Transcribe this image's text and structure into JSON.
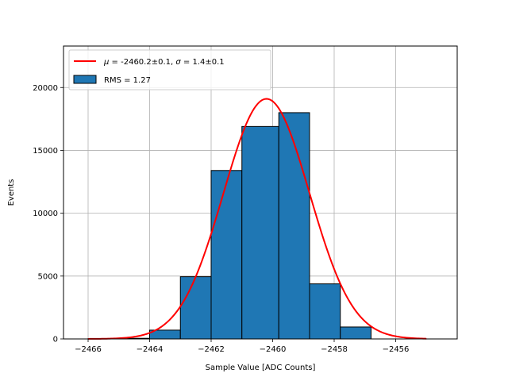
{
  "chart_data": {
    "type": "bar",
    "title": "",
    "xlabel": "Sample Value [ADC Counts]",
    "ylabel": "Events",
    "xlim": [
      -2466.8,
      -2454.0
    ],
    "ylim": [
      0,
      23300
    ],
    "grid": true,
    "legend_position": "top-left",
    "x_ticks": [
      -2466,
      -2464,
      -2462,
      -2460,
      -2458,
      -2456
    ],
    "x_tick_labels": [
      "−2466",
      "−2464",
      "−2462",
      "−2460",
      "−2458",
      "−2456"
    ],
    "y_ticks": [
      0,
      5000,
      10000,
      15000,
      20000
    ],
    "y_tick_labels": [
      "0",
      "5000",
      "10000",
      "15000",
      "20000"
    ],
    "bins": [
      {
        "x0": -2466.0,
        "x1": -2465.0,
        "value": 20
      },
      {
        "x0": -2465.0,
        "x1": -2464.0,
        "value": 50
      },
      {
        "x0": -2464.0,
        "x1": -2463.0,
        "value": 700
      },
      {
        "x0": -2463.0,
        "x1": -2462.0,
        "value": 4950
      },
      {
        "x0": -2462.0,
        "x1": -2461.0,
        "value": 13400
      },
      {
        "x0": -2461.0,
        "x1": -2459.8,
        "value": 16900
      },
      {
        "x0": -2459.8,
        "x1": -2458.8,
        "value": 18000
      },
      {
        "x0": -2458.8,
        "x1": -2457.8,
        "value": 4380
      },
      {
        "x0": -2457.8,
        "x1": -2456.8,
        "value": 950
      }
    ],
    "histogram_color": "#1f77b4",
    "histogram_edge_color": "#000000",
    "fit": {
      "mu": -2460.2,
      "sigma": 1.4,
      "amplitude": 19100,
      "x_range": [
        -2466.0,
        -2455.0
      ],
      "color": "#ff0000"
    },
    "legend": [
      {
        "label_pre": "μ = ",
        "label_value": "-2460.2±0.1, ",
        "label_sigma": "σ = ",
        "label_sigma_value": "1.4±0.1",
        "type": "line",
        "color": "#ff0000"
      },
      {
        "label": "RMS = 1.27",
        "type": "patch",
        "color": "#1f77b4"
      }
    ]
  }
}
